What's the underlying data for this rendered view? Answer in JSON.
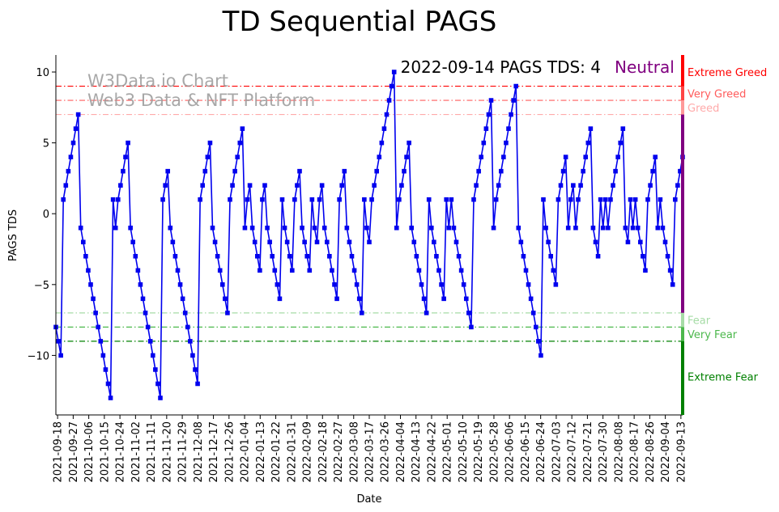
{
  "chart_data": {
    "type": "line",
    "title": "TD Sequential PAGS",
    "xlabel": "Date",
    "ylabel": "PAGS TDS",
    "ylim": [
      -14.2,
      11.2
    ],
    "y_ticks": [
      10,
      5,
      0,
      -5,
      -10
    ],
    "x_tick_labels": [
      "2021-09-18",
      "2021-09-27",
      "2021-10-06",
      "2021-10-15",
      "2021-10-24",
      "2021-11-02",
      "2021-11-11",
      "2021-11-20",
      "2021-11-29",
      "2021-12-08",
      "2021-12-17",
      "2021-12-26",
      "2022-01-04",
      "2022-01-13",
      "2022-01-22",
      "2022-01-31",
      "2022-02-09",
      "2022-02-18",
      "2022-02-27",
      "2022-03-08",
      "2022-03-17",
      "2022-03-26",
      "2022-04-04",
      "2022-04-13",
      "2022-04-22",
      "2022-05-01",
      "2022-05-10",
      "2022-05-19",
      "2022-05-28",
      "2022-06-06",
      "2022-06-15",
      "2022-06-24",
      "2022-07-03",
      "2022-07-12",
      "2022-07-21",
      "2022-07-30",
      "2022-08-08",
      "2022-08-17",
      "2022-08-26",
      "2022-09-04",
      "2022-09-13"
    ],
    "x_start": "2021-09-17",
    "x_end": "2022-09-14",
    "series": [
      {
        "name": "PAGS TDS",
        "color": "#0000ee",
        "values": [
          -8,
          -9,
          -10,
          1,
          2,
          3,
          4,
          5,
          6,
          7,
          -1,
          -2,
          -3,
          -4,
          -5,
          -6,
          -7,
          -8,
          -9,
          -10,
          -11,
          -12,
          -13,
          1,
          -1,
          1,
          2,
          3,
          4,
          5,
          -1,
          -2,
          -3,
          -4,
          -5,
          -6,
          -7,
          -8,
          -9,
          -10,
          -11,
          -12,
          -13,
          1,
          2,
          3,
          -1,
          -2,
          -3,
          -4,
          -5,
          -6,
          -7,
          -8,
          -9,
          -10,
          -11,
          -12,
          1,
          2,
          3,
          4,
          5,
          -1,
          -2,
          -3,
          -4,
          -5,
          -6,
          -7,
          1,
          2,
          3,
          4,
          5,
          6,
          -1,
          1,
          2,
          -1,
          -2,
          -3,
          -4,
          1,
          2,
          -1,
          -2,
          -3,
          -4,
          -5,
          -6,
          1,
          -1,
          -2,
          -3,
          -4,
          1,
          2,
          3,
          -1,
          -2,
          -3,
          -4,
          1,
          -1,
          -2,
          1,
          2,
          -1,
          -2,
          -3,
          -4,
          -5,
          -6,
          1,
          2,
          3,
          -1,
          -2,
          -3,
          -4,
          -5,
          -6,
          -7,
          1,
          -1,
          -2,
          1,
          2,
          3,
          4,
          5,
          6,
          7,
          8,
          9,
          10,
          -1,
          1,
          2,
          3,
          4,
          5,
          -1,
          -2,
          -3,
          -4,
          -5,
          -6,
          -7,
          1,
          -1,
          -2,
          -3,
          -4,
          -5,
          -6,
          1,
          -1,
          1,
          -1,
          -2,
          -3,
          -4,
          -5,
          -6,
          -7,
          -8,
          1,
          2,
          3,
          4,
          5,
          6,
          7,
          8,
          -1,
          1,
          2,
          3,
          4,
          5,
          6,
          7,
          8,
          9,
          -1,
          -2,
          -3,
          -4,
          -5,
          -6,
          -7,
          -8,
          -9,
          -10,
          1,
          -1,
          -2,
          -3,
          -4,
          -5,
          1,
          2,
          3,
          4,
          -1,
          1,
          2,
          -1,
          1,
          2,
          3,
          4,
          5,
          6,
          -1,
          -2,
          -3,
          1,
          -1,
          1,
          -1,
          1,
          2,
          3,
          4,
          5,
          6,
          -1,
          -2,
          1,
          -1,
          1,
          -1,
          -2,
          -3,
          -4,
          1,
          2,
          3,
          4,
          -1,
          1,
          -1,
          -2,
          -3,
          -4,
          -5,
          1,
          2,
          3,
          4
        ]
      }
    ],
    "thresholds": [
      {
        "label": "Extreme Greed",
        "y": 9,
        "color": "#ff0000"
      },
      {
        "label": "Very Greed",
        "y": 8,
        "color": "#ff5c5c"
      },
      {
        "label": "Greed",
        "y": 7,
        "color": "#ffaaaa"
      },
      {
        "label": "Fear",
        "y": -7,
        "color": "#a6dca6"
      },
      {
        "label": "Very Fear",
        "y": -8,
        "color": "#4cb84c"
      },
      {
        "label": "Extreme Fear",
        "y": -9,
        "color": "#008000"
      }
    ],
    "side_bar_segments": [
      {
        "from": 9,
        "to": 11.2,
        "color": "#ff0000"
      },
      {
        "from": 8,
        "to": 9,
        "color": "#ff4444"
      },
      {
        "from": 7,
        "to": 8,
        "color": "#ff9999"
      },
      {
        "from": -7,
        "to": 7,
        "color": "#800080"
      },
      {
        "from": -8,
        "to": -7,
        "color": "#a6dca6"
      },
      {
        "from": -9,
        "to": -8,
        "color": "#4cb84c"
      },
      {
        "from": -14.2,
        "to": -9,
        "color": "#008000"
      }
    ],
    "side_labels": [
      {
        "text": "Extreme Greed",
        "color": "#ff0000",
        "at": 10
      },
      {
        "text": "Very Greed",
        "color": "#ff5c5c",
        "at": 8.5
      },
      {
        "text": "Greed",
        "color": "#ffaaaa",
        "at": 7.5
      },
      {
        "text": "Fear",
        "color": "#a6dca6",
        "at": -7.5
      },
      {
        "text": "Very Fear",
        "color": "#4cb84c",
        "at": -8.5
      },
      {
        "text": "Extreme Fear",
        "color": "#008000",
        "at": -11.5
      }
    ],
    "annotation": "2022-09-14 PAGS TDS: 4",
    "status": {
      "text": "Neutral",
      "color": "#800080"
    },
    "watermark": [
      "W3Data.io Chart",
      "Web3 Data & NFT Platform"
    ]
  }
}
